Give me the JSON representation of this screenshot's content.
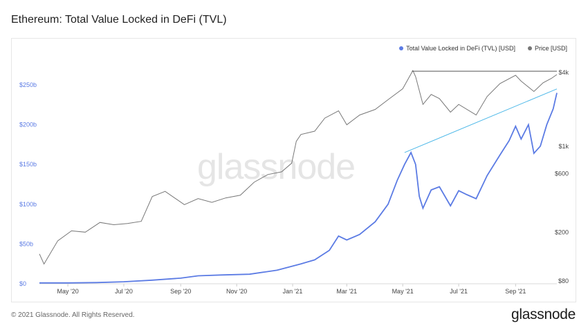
{
  "title": "Ethereum: Total Value Locked in DeFi (TVL)",
  "footer": "© 2021 Glassnode. All Rights Reserved.",
  "brand": "glassnode",
  "watermark": "glassnode",
  "legend": {
    "tvl_label": "Total Value Locked in DeFi (TVL) [USD]",
    "price_label": "Price [USD]"
  },
  "colors": {
    "tvl": "#5b7be4",
    "price": "#777777",
    "trend": "#4db8e8",
    "resistance": "#555555"
  },
  "chart_data": {
    "type": "line",
    "title": "Ethereum: Total Value Locked in DeFi (TVL)",
    "x_start": "2020-03-31",
    "x_end": "2021-10-16",
    "x_tick_labels": [
      "May '20",
      "Jul '20",
      "Sep '20",
      "Nov '20",
      "Jan '21",
      "Mar '21",
      "May '21",
      "Jul '21",
      "Sep '21"
    ],
    "x_tick_dates": [
      "2020-05-01",
      "2020-07-01",
      "2020-09-01",
      "2020-11-01",
      "2021-01-01",
      "2021-03-01",
      "2021-05-01",
      "2021-07-01",
      "2021-09-01"
    ],
    "left_axis": {
      "scale": "linear",
      "ylim": [
        0,
        270000000000
      ],
      "tick_values": [
        0,
        50000000000,
        100000000000,
        150000000000,
        200000000000,
        250000000000
      ],
      "tick_labels": [
        "$0",
        "$50b",
        "$100b",
        "$150b",
        "$200b",
        "$250b"
      ]
    },
    "right_axis": {
      "scale": "log",
      "tick_values": [
        80,
        200,
        600,
        1000,
        4000
      ],
      "tick_labels": [
        "$80",
        "$200",
        "$600",
        "$1k",
        "$4k"
      ]
    },
    "series": [
      {
        "name": "Total Value Locked in DeFi (TVL) [USD]",
        "axis": "left",
        "points": [
          [
            "2020-03-31",
            1000000000
          ],
          [
            "2020-05-01",
            1000000000
          ],
          [
            "2020-06-01",
            1500000000
          ],
          [
            "2020-07-01",
            2500000000
          ],
          [
            "2020-08-01",
            4500000000
          ],
          [
            "2020-09-01",
            7000000000
          ],
          [
            "2020-09-20",
            10000000000
          ],
          [
            "2020-10-15",
            11000000000
          ],
          [
            "2020-11-15",
            12000000000
          ],
          [
            "2020-12-15",
            17000000000
          ],
          [
            "2021-01-10",
            25000000000
          ],
          [
            "2021-01-25",
            30000000000
          ],
          [
            "2021-02-10",
            42000000000
          ],
          [
            "2021-02-20",
            60000000000
          ],
          [
            "2021-03-01",
            55000000000
          ],
          [
            "2021-03-15",
            62000000000
          ],
          [
            "2021-04-01",
            78000000000
          ],
          [
            "2021-04-15",
            100000000000
          ],
          [
            "2021-04-25",
            130000000000
          ],
          [
            "2021-05-03",
            150000000000
          ],
          [
            "2021-05-10",
            165000000000
          ],
          [
            "2021-05-15",
            150000000000
          ],
          [
            "2021-05-19",
            110000000000
          ],
          [
            "2021-05-23",
            95000000000
          ],
          [
            "2021-06-01",
            118000000000
          ],
          [
            "2021-06-10",
            122000000000
          ],
          [
            "2021-06-22",
            98000000000
          ],
          [
            "2021-07-01",
            117000000000
          ],
          [
            "2021-07-10",
            112000000000
          ],
          [
            "2021-07-20",
            107000000000
          ],
          [
            "2021-08-01",
            136000000000
          ],
          [
            "2021-08-15",
            162000000000
          ],
          [
            "2021-08-25",
            180000000000
          ],
          [
            "2021-09-01",
            198000000000
          ],
          [
            "2021-09-07",
            182000000000
          ],
          [
            "2021-09-15",
            200000000000
          ],
          [
            "2021-09-21",
            164000000000
          ],
          [
            "2021-09-28",
            173000000000
          ],
          [
            "2021-10-05",
            200000000000
          ],
          [
            "2021-10-12",
            220000000000
          ],
          [
            "2021-10-16",
            240000000000
          ]
        ]
      },
      {
        "name": "Price [USD]",
        "axis": "right",
        "points": [
          [
            "2020-03-31",
            133
          ],
          [
            "2020-04-05",
            110
          ],
          [
            "2020-04-20",
            170
          ],
          [
            "2020-05-05",
            205
          ],
          [
            "2020-05-20",
            200
          ],
          [
            "2020-06-05",
            240
          ],
          [
            "2020-06-20",
            230
          ],
          [
            "2020-07-05",
            235
          ],
          [
            "2020-07-20",
            245
          ],
          [
            "2020-08-01",
            390
          ],
          [
            "2020-08-15",
            430
          ],
          [
            "2020-09-05",
            335
          ],
          [
            "2020-09-20",
            375
          ],
          [
            "2020-10-05",
            350
          ],
          [
            "2020-10-20",
            380
          ],
          [
            "2020-11-05",
            400
          ],
          [
            "2020-11-20",
            510
          ],
          [
            "2020-12-05",
            590
          ],
          [
            "2020-12-20",
            620
          ],
          [
            "2020-12-31",
            730
          ],
          [
            "2021-01-05",
            1100
          ],
          [
            "2021-01-10",
            1250
          ],
          [
            "2021-01-25",
            1330
          ],
          [
            "2021-02-05",
            1700
          ],
          [
            "2021-02-20",
            1950
          ],
          [
            "2021-03-01",
            1500
          ],
          [
            "2021-03-15",
            1800
          ],
          [
            "2021-04-01",
            2000
          ],
          [
            "2021-04-15",
            2400
          ],
          [
            "2021-05-01",
            2950
          ],
          [
            "2021-05-12",
            4150
          ],
          [
            "2021-05-15",
            3700
          ],
          [
            "2021-05-23",
            2200
          ],
          [
            "2021-06-01",
            2650
          ],
          [
            "2021-06-10",
            2450
          ],
          [
            "2021-06-22",
            1900
          ],
          [
            "2021-07-01",
            2200
          ],
          [
            "2021-07-20",
            1800
          ],
          [
            "2021-08-01",
            2550
          ],
          [
            "2021-08-15",
            3250
          ],
          [
            "2021-09-01",
            3800
          ],
          [
            "2021-09-07",
            3400
          ],
          [
            "2021-09-21",
            2800
          ],
          [
            "2021-10-01",
            3300
          ],
          [
            "2021-10-10",
            3580
          ],
          [
            "2021-10-16",
            3850
          ]
        ]
      }
    ],
    "annotations": [
      {
        "kind": "resistance",
        "from": [
          "2021-05-11",
          4100
        ],
        "to": [
          "2021-10-16",
          4100
        ]
      },
      {
        "kind": "trend",
        "from": [
          "2021-05-03",
          165000000000
        ],
        "to": [
          "2021-10-16",
          245000000000
        ]
      }
    ]
  }
}
